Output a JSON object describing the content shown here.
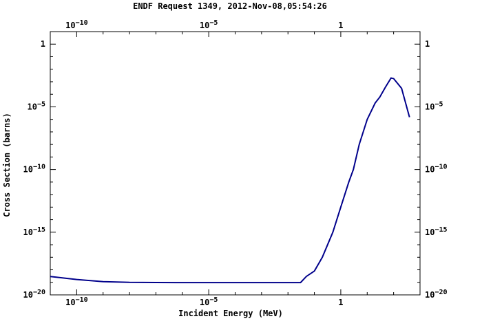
{
  "chart_data": {
    "type": "line",
    "title": "ENDF Request 1349, 2012-Nov-08,05:54:26",
    "xlabel": "Incident Energy (MeV)",
    "ylabel": "Cross Section (barns)",
    "x_scale": "log",
    "y_scale": "log",
    "xlim": [
      1e-11,
      1000
    ],
    "ylim": [
      1e-20,
      10
    ],
    "x_ticks": [
      {
        "value": 1e-10,
        "base": "10",
        "exp": "−10"
      },
      {
        "value": 1e-05,
        "base": "10",
        "exp": "−5"
      },
      {
        "value": 1,
        "base": "1",
        "exp": ""
      }
    ],
    "y_ticks": [
      {
        "value": 1,
        "base": "1",
        "exp": ""
      },
      {
        "value": 1e-05,
        "base": "10",
        "exp": "−5"
      },
      {
        "value": 1e-10,
        "base": "10",
        "exp": "−10"
      },
      {
        "value": 1e-15,
        "base": "10",
        "exp": "−15"
      },
      {
        "value": 1e-20,
        "base": "10",
        "exp": "−20"
      }
    ],
    "grid": false,
    "series_color": "#00008b",
    "series": [
      {
        "x": [
          1e-11,
          1e-10,
          1e-09,
          1e-08,
          1e-07,
          1e-06,
          1e-05,
          0.0001,
          0.001,
          0.01,
          0.03,
          0.05,
          0.1,
          0.2,
          0.5,
          1,
          2,
          3,
          5,
          10,
          20,
          30,
          50,
          80,
          100,
          200,
          400
        ],
        "y": [
          2.9e-19,
          1.7e-19,
          1.15e-19,
          1e-19,
          9.7e-20,
          9.6e-20,
          9.6e-20,
          9.6e-20,
          9.6e-20,
          9.6e-20,
          9.6e-20,
          3e-19,
          8e-19,
          1e-17,
          1e-15,
          1e-13,
          1e-11,
          1e-10,
          1e-08,
          1e-06,
          2e-05,
          6e-05,
          0.0004,
          0.002,
          0.0018,
          0.0003,
          1.5e-06
        ]
      }
    ]
  }
}
